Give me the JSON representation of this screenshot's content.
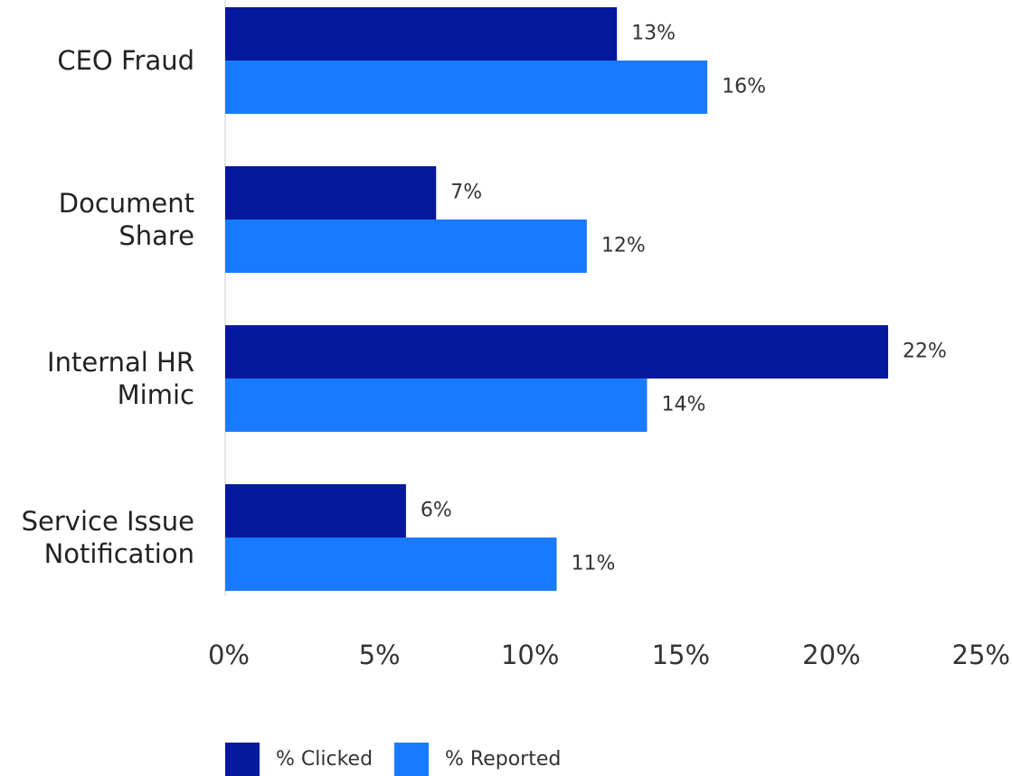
{
  "chart_data": {
    "type": "barh",
    "categories": [
      "CEO Fraud",
      "Document Share",
      "Internal HR Mimic",
      "Service Issue Notification"
    ],
    "series": [
      {
        "name": "% Clicked",
        "color": "#06189e",
        "values": [
          13,
          7,
          22,
          6
        ],
        "value_labels": [
          "13%",
          "7%",
          "22%",
          "6%"
        ]
      },
      {
        "name": "% Reported",
        "color": "#187bff",
        "values": [
          16,
          12,
          14,
          11
        ],
        "value_labels": [
          "16%",
          "12%",
          "14%",
          "11%"
        ]
      }
    ],
    "xlim": [
      0,
      25
    ],
    "xticks": [
      {
        "value": 0,
        "label": "0%"
      },
      {
        "value": 5,
        "label": "5%"
      },
      {
        "value": 10,
        "label": "10%"
      },
      {
        "value": 15,
        "label": "15%"
      },
      {
        "value": 20,
        "label": "20%"
      },
      {
        "value": 25,
        "label": "25%"
      }
    ],
    "grid": false,
    "legend": "bottom"
  }
}
